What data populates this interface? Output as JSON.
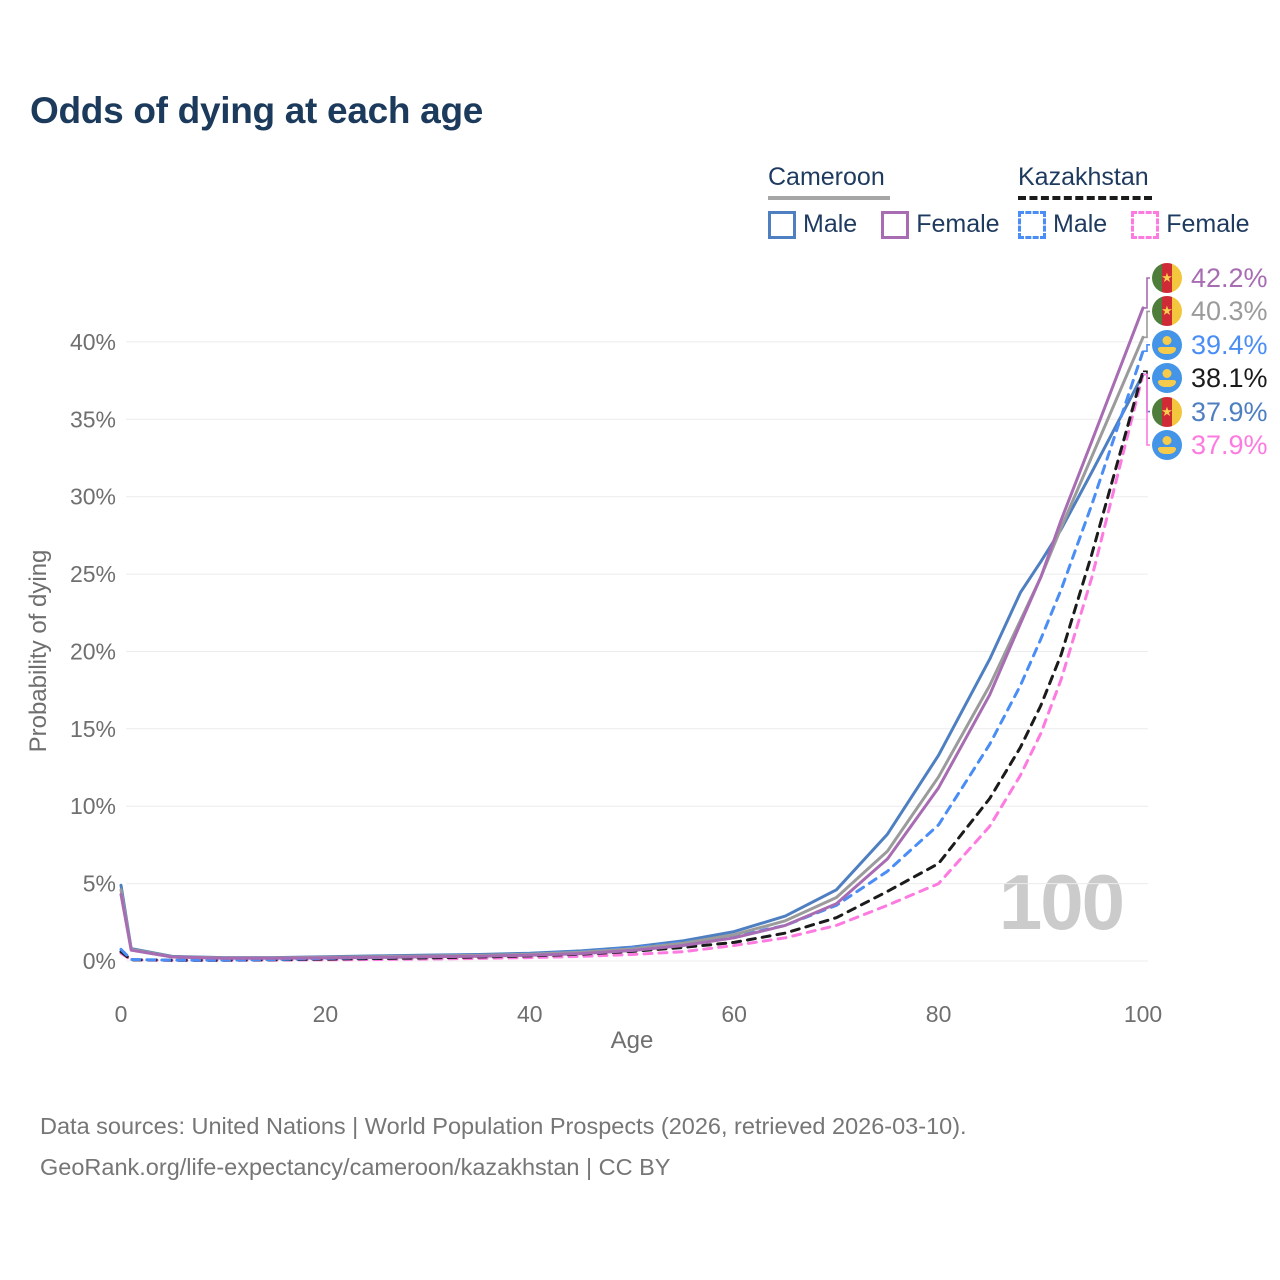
{
  "title": "Odds of dying at each age",
  "age_indicator": "100",
  "legend": {
    "groups": [
      {
        "country": "Cameroon",
        "line_style": "solid",
        "line_color": "#a6a6a6",
        "items": [
          {
            "label": "Male",
            "color": "#4e7fc1",
            "dashed": false
          },
          {
            "label": "Female",
            "color": "#a76cb2",
            "dashed": false
          }
        ]
      },
      {
        "country": "Kazakhstan",
        "line_style": "dashed",
        "line_color": "#1b1b1b",
        "items": [
          {
            "label": "Male",
            "color": "#4a8df5",
            "dashed": true
          },
          {
            "label": "Female",
            "color": "#fd7ae0",
            "dashed": true
          }
        ]
      }
    ]
  },
  "footer": {
    "line1": "Data sources: United Nations | World Population Prospects (2026, retrieved 2026-03-10).",
    "line2": "GeoRank.org/life-expectancy/cameroon/kazakhstan | CC BY"
  },
  "chart_data": {
    "type": "line",
    "title": "Odds of dying at each age",
    "xlabel": "Age",
    "ylabel": "Probability of dying",
    "xlim": [
      0,
      100
    ],
    "ylim": [
      0,
      44
    ],
    "grid": "horizontal",
    "legend_position": "top-right",
    "x_ticks": [
      0,
      20,
      40,
      60,
      80,
      100
    ],
    "x_tick_labels": [
      "0",
      "20",
      "40",
      "60",
      "80",
      "100"
    ],
    "y_ticks": [
      0,
      5,
      10,
      15,
      20,
      25,
      30,
      35,
      40
    ],
    "y_tick_labels": [
      "0%",
      "5%",
      "10%",
      "15%",
      "20%",
      "25%",
      "30%",
      "35%",
      "40%"
    ],
    "x": [
      0,
      1,
      5,
      10,
      15,
      20,
      25,
      30,
      35,
      40,
      45,
      50,
      55,
      60,
      65,
      70,
      75,
      80,
      85,
      88,
      90,
      92,
      95,
      100
    ],
    "series": [
      {
        "name": "Cameroon Female",
        "country": "Cameroon",
        "color": "#a76cb2",
        "dashed": false,
        "end_value": 42.2,
        "end_label": "42.2%",
        "values": [
          4.3,
          0.7,
          0.26,
          0.18,
          0.18,
          0.2,
          0.23,
          0.27,
          0.31,
          0.37,
          0.48,
          0.68,
          1.0,
          1.5,
          2.3,
          3.7,
          6.6,
          11.2,
          17.2,
          21.8,
          24.8,
          28.5,
          33.6,
          42.2
        ]
      },
      {
        "name": "Cameroon Both sexes",
        "country": "Cameroon",
        "color": "#9b9b9b",
        "dashed": false,
        "end_value": 40.3,
        "end_label": "40.3%",
        "values": [
          4.6,
          0.75,
          0.28,
          0.2,
          0.2,
          0.24,
          0.28,
          0.32,
          0.36,
          0.43,
          0.56,
          0.78,
          1.15,
          1.7,
          2.6,
          4.1,
          7.1,
          11.9,
          17.8,
          22.0,
          24.8,
          28.0,
          32.6,
          40.3
        ]
      },
      {
        "name": "Kazakhstan Male",
        "country": "Kazakhstan",
        "color": "#4a8df5",
        "dashed": true,
        "end_value": 39.4,
        "end_label": "39.4%",
        "values": [
          0.75,
          0.1,
          0.06,
          0.06,
          0.1,
          0.17,
          0.22,
          0.28,
          0.35,
          0.45,
          0.6,
          0.85,
          1.2,
          1.6,
          2.3,
          3.6,
          5.8,
          8.8,
          14.0,
          17.8,
          20.8,
          24.0,
          29.5,
          39.4
        ]
      },
      {
        "name": "Kazakhstan Both sexes",
        "country": "Kazakhstan",
        "color": "#1b1b1b",
        "dashed": true,
        "end_value": 38.1,
        "end_label": "38.1%",
        "values": [
          0.6,
          0.08,
          0.05,
          0.05,
          0.08,
          0.12,
          0.16,
          0.2,
          0.26,
          0.33,
          0.44,
          0.62,
          0.88,
          1.2,
          1.8,
          2.8,
          4.5,
          6.3,
          10.5,
          13.8,
          16.5,
          19.8,
          26.3,
          38.1
        ]
      },
      {
        "name": "Cameroon Male",
        "country": "Cameroon",
        "color": "#4e7fc1",
        "dashed": false,
        "end_value": 37.9,
        "end_label": "37.9%",
        "values": [
          4.9,
          0.8,
          0.3,
          0.22,
          0.22,
          0.28,
          0.33,
          0.38,
          0.42,
          0.5,
          0.65,
          0.9,
          1.3,
          1.9,
          2.9,
          4.6,
          8.2,
          13.3,
          19.5,
          23.8,
          25.8,
          27.9,
          31.6,
          37.9
        ]
      },
      {
        "name": "Kazakhstan Female",
        "country": "Kazakhstan",
        "color": "#fd7ae0",
        "dashed": true,
        "end_value": 37.9,
        "end_label": "37.9%",
        "values": [
          0.5,
          0.07,
          0.04,
          0.04,
          0.06,
          0.08,
          0.1,
          0.13,
          0.17,
          0.22,
          0.3,
          0.42,
          0.6,
          1.0,
          1.5,
          2.3,
          3.6,
          5.0,
          8.7,
          12.0,
          14.7,
          18.2,
          24.8,
          37.9
        ]
      }
    ]
  }
}
